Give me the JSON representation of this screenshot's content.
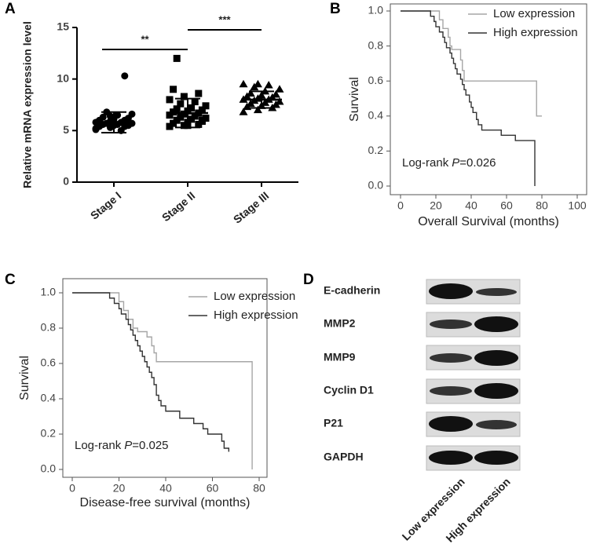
{
  "panels": [
    "A",
    "B",
    "C",
    "D"
  ],
  "chart_data": [
    {
      "type": "dot",
      "ylabel": "Relative mRNA expression level",
      "categories": [
        "Stage I",
        "Stage II",
        "Stage III"
      ],
      "groups": [
        {
          "marker": "circle",
          "mean": 5.8,
          "sd": 1.0,
          "values": [
            5.2,
            5.3,
            5.4,
            5.4,
            5.5,
            5.5,
            5.6,
            5.6,
            5.7,
            5.7,
            5.8,
            5.8,
            5.9,
            6.0,
            6.0,
            6.1,
            6.2,
            6.3,
            6.5,
            6.6,
            6.8,
            5.0,
            5.1,
            6.4,
            10.3
          ]
        },
        {
          "marker": "square",
          "mean": 6.7,
          "sd": 1.4,
          "values": [
            5.4,
            5.5,
            5.6,
            5.7,
            5.8,
            5.9,
            6.0,
            6.1,
            6.2,
            6.3,
            6.4,
            6.5,
            6.6,
            6.7,
            6.8,
            6.9,
            7.0,
            7.1,
            7.2,
            7.4,
            7.6,
            7.8,
            8.0,
            8.3,
            8.6,
            9.0,
            5.5,
            6.0,
            12.0
          ]
        },
        {
          "marker": "triangle",
          "mean": 8.0,
          "sd": 0.8,
          "values": [
            6.8,
            7.0,
            7.2,
            7.3,
            7.4,
            7.5,
            7.6,
            7.7,
            7.8,
            7.9,
            8.0,
            8.0,
            8.1,
            8.2,
            8.3,
            8.4,
            8.5,
            8.6,
            8.8,
            9.0,
            9.2,
            9.4,
            9.5,
            9.5
          ]
        }
      ],
      "color": "#000000",
      "ylim": [
        0,
        15
      ],
      "yticks": [
        0,
        5,
        10,
        15
      ],
      "annotations": [
        {
          "text": "**",
          "from": "Stage I",
          "to": "Stage II"
        },
        {
          "text": "***",
          "from": "Stage II",
          "to": "Stage III"
        }
      ]
    },
    {
      "type": "km",
      "xlabel": "Overall Survival (months)",
      "ylabel": "Survival",
      "annotation": {
        "prefix": "Log-rank",
        "italic": "P",
        "value": "=0.026"
      },
      "xlim": [
        0,
        100
      ],
      "xticks": [
        0,
        20,
        40,
        60,
        80,
        100
      ],
      "ylim": [
        0,
        1
      ],
      "yticks": [
        {
          "value": 0,
          "label": "0.0"
        },
        {
          "value": 0.2,
          "label": "0.2"
        },
        {
          "value": 0.4,
          "label": "0.4"
        },
        {
          "value": 0.6,
          "label": "0.6"
        },
        {
          "value": 0.8,
          "label": "0.8"
        },
        {
          "value": 1,
          "label": "1.0"
        }
      ],
      "legend": "top-right",
      "series": [
        {
          "name": "Low expression",
          "color": "#a6a6a6",
          "x": [
            0,
            20,
            22,
            24,
            27,
            28,
            29,
            33,
            34,
            35,
            36,
            75,
            77,
            80
          ],
          "values": [
            1,
            1,
            0.95,
            0.9,
            0.85,
            0.8,
            0.78,
            0.78,
            0.72,
            0.66,
            0.6,
            0.6,
            0.4,
            0.4
          ]
        },
        {
          "name": "High expression",
          "color": "#333333",
          "x": [
            0,
            15,
            17,
            19,
            20,
            22,
            24,
            25,
            26,
            28,
            29,
            30,
            31,
            32,
            34,
            35,
            36,
            37,
            39,
            40,
            41,
            43,
            44,
            46,
            55,
            57,
            64,
            65,
            75,
            76
          ],
          "values": [
            1,
            1,
            0.97,
            0.94,
            0.91,
            0.88,
            0.85,
            0.82,
            0.79,
            0.76,
            0.73,
            0.7,
            0.67,
            0.64,
            0.61,
            0.58,
            0.55,
            0.52,
            0.48,
            0.45,
            0.42,
            0.38,
            0.35,
            0.32,
            0.32,
            0.29,
            0.29,
            0.26,
            0.26,
            0
          ]
        }
      ]
    },
    {
      "type": "km",
      "xlabel": "Disease-free survival (months)",
      "ylabel": "Survival",
      "annotation": {
        "prefix": "Log-rank",
        "italic": "P",
        "value": "=0.025"
      },
      "xlim": [
        0,
        80
      ],
      "xticks": [
        0,
        20,
        40,
        60,
        80
      ],
      "ylim": [
        0,
        1
      ],
      "yticks": [
        {
          "value": 0,
          "label": "0.0"
        },
        {
          "value": 0.2,
          "label": "0.2"
        },
        {
          "value": 0.4,
          "label": "0.4"
        },
        {
          "value": 0.6,
          "label": "0.6"
        },
        {
          "value": 0.8,
          "label": "0.8"
        },
        {
          "value": 1,
          "label": "1.0"
        }
      ],
      "legend": "top-right",
      "series": [
        {
          "name": "Low expression",
          "color": "#a6a6a6",
          "x": [
            0,
            18,
            20,
            22,
            24,
            26,
            28,
            30,
            32,
            34,
            35,
            36,
            77,
            77
          ],
          "values": [
            1,
            1,
            0.95,
            0.9,
            0.85,
            0.8,
            0.78,
            0.78,
            0.75,
            0.7,
            0.66,
            0.61,
            0.61,
            0
          ]
        },
        {
          "name": "High expression",
          "color": "#333333",
          "x": [
            0,
            14,
            16,
            18,
            20,
            21,
            23,
            24,
            25,
            26,
            27,
            28,
            29,
            30,
            31,
            32,
            33,
            34,
            35,
            36,
            37,
            38,
            40,
            44,
            46,
            50,
            52,
            56,
            58,
            62,
            64,
            65,
            67
          ],
          "values": [
            1,
            1,
            0.97,
            0.94,
            0.91,
            0.88,
            0.85,
            0.82,
            0.79,
            0.76,
            0.73,
            0.7,
            0.67,
            0.64,
            0.61,
            0.58,
            0.55,
            0.52,
            0.48,
            0.42,
            0.39,
            0.36,
            0.33,
            0.33,
            0.29,
            0.29,
            0.26,
            0.23,
            0.2,
            0.2,
            0.16,
            0.12,
            0.1
          ]
        }
      ]
    }
  ],
  "western_blot": {
    "rows": [
      "E-cadherin",
      "MMP2",
      "MMP9",
      "Cyclin D1",
      "P21",
      "GAPDH"
    ],
    "columns": [
      "Low expression",
      "High expression"
    ]
  }
}
